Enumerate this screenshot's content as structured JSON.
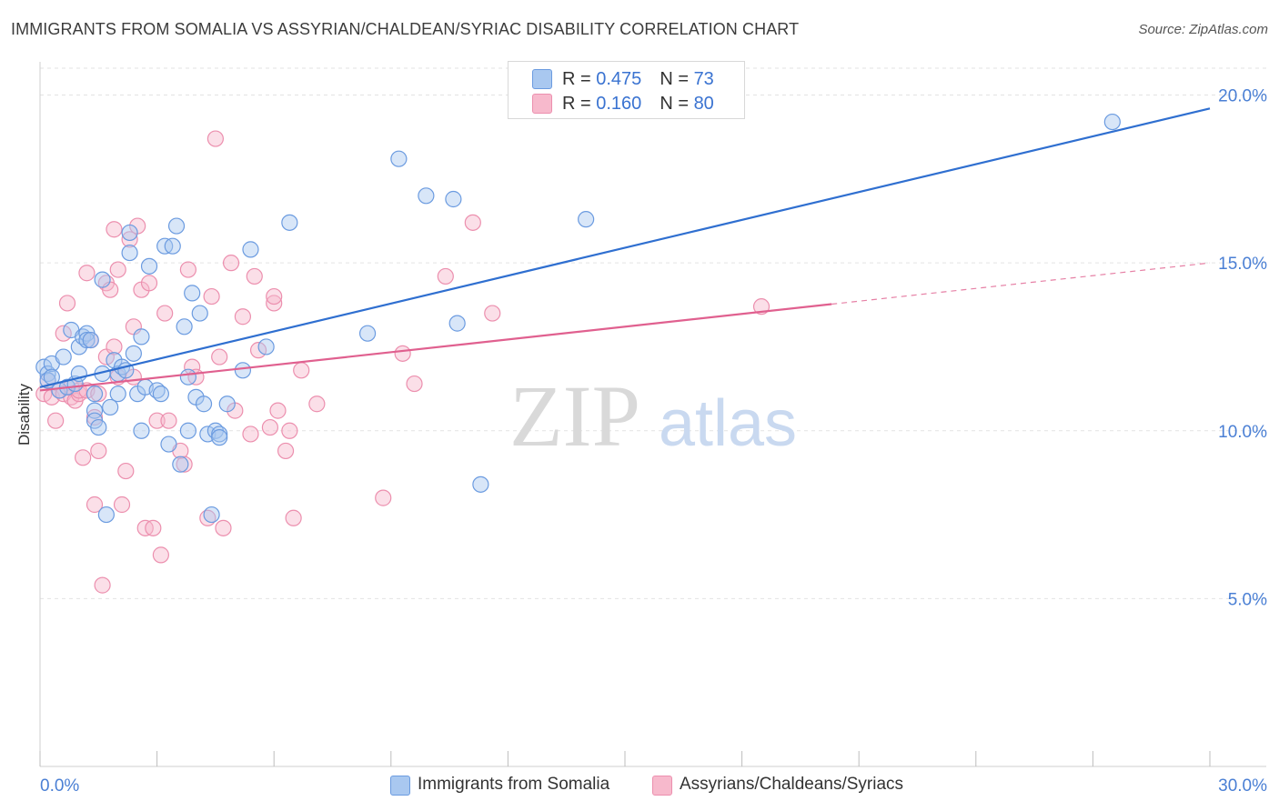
{
  "header": {
    "title": "IMMIGRANTS FROM SOMALIA VS ASSYRIAN/CHALDEAN/SYRIAC DISABILITY CORRELATION CHART",
    "source": "Source: ZipAtlas.com"
  },
  "watermark": {
    "zip": "ZIP",
    "atlas": "atlas"
  },
  "colors": {
    "blue_fill": "#a9c8f0",
    "blue_stroke": "#6b9be0",
    "blue_line": "#2f6fd0",
    "pink_fill": "#f7b9cc",
    "pink_stroke": "#ec8fae",
    "pink_line": "#e0608f",
    "grid": "#e3e3e3",
    "tick_text": "#4a7fd4"
  },
  "legend_top": {
    "rows": [
      {
        "r_label": "R = ",
        "r_value": "0.475",
        "n_label": "N = ",
        "n_value": "73"
      },
      {
        "r_label": "R = ",
        "r_value": "0.160",
        "n_label": "N = ",
        "n_value": "80"
      }
    ]
  },
  "chart_data": {
    "type": "scatter",
    "title": "IMMIGRANTS FROM SOMALIA VS ASSYRIAN/CHALDEAN/SYRIAC DISABILITY CORRELATION CHART",
    "xlabel": "",
    "ylabel": "Disability",
    "xlim": [
      0,
      30
    ],
    "ylim": [
      0,
      20.8
    ],
    "x_tick_labels": [
      "0.0%",
      "30.0%"
    ],
    "y_ticks": [
      5,
      10,
      15,
      20
    ],
    "y_tick_labels": [
      "5.0%",
      "10.0%",
      "15.0%",
      "20.0%"
    ],
    "grid": true,
    "legend_position": "top-center",
    "series": [
      {
        "name": "Immigrants from Somalia",
        "r": 0.475,
        "n": 73,
        "trend": {
          "x0": 0,
          "y0": 11.3,
          "x1": 30,
          "y1": 19.6,
          "dashed_from": null
        },
        "points": [
          [
            0.1,
            11.9
          ],
          [
            0.2,
            11.7
          ],
          [
            0.2,
            11.5
          ],
          [
            0.3,
            12.0
          ],
          [
            0.3,
            11.6
          ],
          [
            0.5,
            11.2
          ],
          [
            0.6,
            12.2
          ],
          [
            0.7,
            11.3
          ],
          [
            0.8,
            13.0
          ],
          [
            0.9,
            11.4
          ],
          [
            1.0,
            12.5
          ],
          [
            1.0,
            11.7
          ],
          [
            1.1,
            12.8
          ],
          [
            1.2,
            12.9
          ],
          [
            1.2,
            12.7
          ],
          [
            1.3,
            12.7
          ],
          [
            1.4,
            10.6
          ],
          [
            1.4,
            10.3
          ],
          [
            1.4,
            11.1
          ],
          [
            1.5,
            10.1
          ],
          [
            1.6,
            11.7
          ],
          [
            1.6,
            14.5
          ],
          [
            1.7,
            7.5
          ],
          [
            1.8,
            10.7
          ],
          [
            1.9,
            12.1
          ],
          [
            2.0,
            11.7
          ],
          [
            2.0,
            11.1
          ],
          [
            2.1,
            11.9
          ],
          [
            2.2,
            11.8
          ],
          [
            2.3,
            15.3
          ],
          [
            2.3,
            15.9
          ],
          [
            2.4,
            12.3
          ],
          [
            2.5,
            11.1
          ],
          [
            2.6,
            12.8
          ],
          [
            2.6,
            10.0
          ],
          [
            2.7,
            11.3
          ],
          [
            2.8,
            14.9
          ],
          [
            3.0,
            11.2
          ],
          [
            3.1,
            11.1
          ],
          [
            3.2,
            15.5
          ],
          [
            3.3,
            9.6
          ],
          [
            3.4,
            15.5
          ],
          [
            3.5,
            16.1
          ],
          [
            3.6,
            9.0
          ],
          [
            3.7,
            13.1
          ],
          [
            3.8,
            11.6
          ],
          [
            3.8,
            10.0
          ],
          [
            3.9,
            14.1
          ],
          [
            4.0,
            11.0
          ],
          [
            4.1,
            13.5
          ],
          [
            4.2,
            10.8
          ],
          [
            4.3,
            9.9
          ],
          [
            4.4,
            7.5
          ],
          [
            4.5,
            10.0
          ],
          [
            4.6,
            9.9
          ],
          [
            4.6,
            9.8
          ],
          [
            4.8,
            10.8
          ],
          [
            5.2,
            11.8
          ],
          [
            5.4,
            15.4
          ],
          [
            5.8,
            12.5
          ],
          [
            6.4,
            16.2
          ],
          [
            8.4,
            12.9
          ],
          [
            9.2,
            18.1
          ],
          [
            9.9,
            17.0
          ],
          [
            10.6,
            16.9
          ],
          [
            10.7,
            13.2
          ],
          [
            11.3,
            8.4
          ],
          [
            14.0,
            16.3
          ],
          [
            27.5,
            19.2
          ]
        ]
      },
      {
        "name": "Assyrians/Chaldeans/Syriacs",
        "r": 0.16,
        "n": 80,
        "trend": {
          "x0": 0,
          "y0": 11.2,
          "x1": 30,
          "y1": 15.0,
          "dashed_from": 20.3
        },
        "points": [
          [
            0.1,
            11.1
          ],
          [
            0.2,
            11.5
          ],
          [
            0.3,
            11.0
          ],
          [
            0.4,
            10.3
          ],
          [
            0.5,
            11.2
          ],
          [
            0.6,
            11.1
          ],
          [
            0.6,
            12.9
          ],
          [
            0.7,
            13.8
          ],
          [
            0.8,
            11.0
          ],
          [
            0.8,
            11.3
          ],
          [
            0.9,
            10.9
          ],
          [
            1.0,
            11.1
          ],
          [
            1.0,
            11.2
          ],
          [
            1.1,
            9.2
          ],
          [
            1.2,
            11.2
          ],
          [
            1.2,
            14.7
          ],
          [
            1.3,
            12.7
          ],
          [
            1.4,
            10.4
          ],
          [
            1.4,
            7.8
          ],
          [
            1.5,
            9.4
          ],
          [
            1.5,
            11.1
          ],
          [
            1.6,
            5.4
          ],
          [
            1.7,
            12.2
          ],
          [
            1.7,
            14.4
          ],
          [
            1.8,
            14.2
          ],
          [
            1.9,
            12.5
          ],
          [
            1.9,
            16.0
          ],
          [
            2.0,
            14.8
          ],
          [
            2.0,
            11.6
          ],
          [
            2.1,
            7.8
          ],
          [
            2.2,
            8.8
          ],
          [
            2.3,
            15.7
          ],
          [
            2.4,
            11.6
          ],
          [
            2.4,
            13.1
          ],
          [
            2.5,
            16.1
          ],
          [
            2.6,
            14.2
          ],
          [
            2.7,
            7.1
          ],
          [
            2.8,
            14.4
          ],
          [
            2.9,
            7.1
          ],
          [
            3.0,
            10.3
          ],
          [
            3.1,
            6.3
          ],
          [
            3.2,
            13.5
          ],
          [
            3.3,
            10.3
          ],
          [
            3.6,
            9.4
          ],
          [
            3.7,
            9.0
          ],
          [
            3.8,
            14.8
          ],
          [
            3.9,
            11.9
          ],
          [
            4.0,
            11.6
          ],
          [
            4.3,
            7.4
          ],
          [
            4.4,
            14.0
          ],
          [
            4.5,
            18.7
          ],
          [
            4.6,
            12.2
          ],
          [
            4.7,
            7.1
          ],
          [
            4.9,
            15.0
          ],
          [
            5.0,
            10.6
          ],
          [
            5.2,
            13.4
          ],
          [
            5.4,
            9.9
          ],
          [
            5.5,
            14.6
          ],
          [
            5.6,
            12.4
          ],
          [
            5.9,
            10.1
          ],
          [
            6.0,
            13.8
          ],
          [
            6.0,
            14.0
          ],
          [
            6.1,
            10.6
          ],
          [
            6.3,
            9.4
          ],
          [
            6.4,
            10.0
          ],
          [
            6.5,
            7.4
          ],
          [
            6.7,
            11.8
          ],
          [
            7.1,
            10.8
          ],
          [
            8.8,
            8.0
          ],
          [
            9.3,
            12.3
          ],
          [
            9.6,
            11.4
          ],
          [
            10.4,
            14.6
          ],
          [
            11.1,
            16.2
          ],
          [
            11.6,
            13.5
          ],
          [
            18.5,
            13.7
          ]
        ]
      }
    ]
  },
  "legend_bottom": {
    "items": [
      {
        "label": "Immigrants from Somalia"
      },
      {
        "label": "Assyrians/Chaldeans/Syriacs"
      }
    ]
  }
}
